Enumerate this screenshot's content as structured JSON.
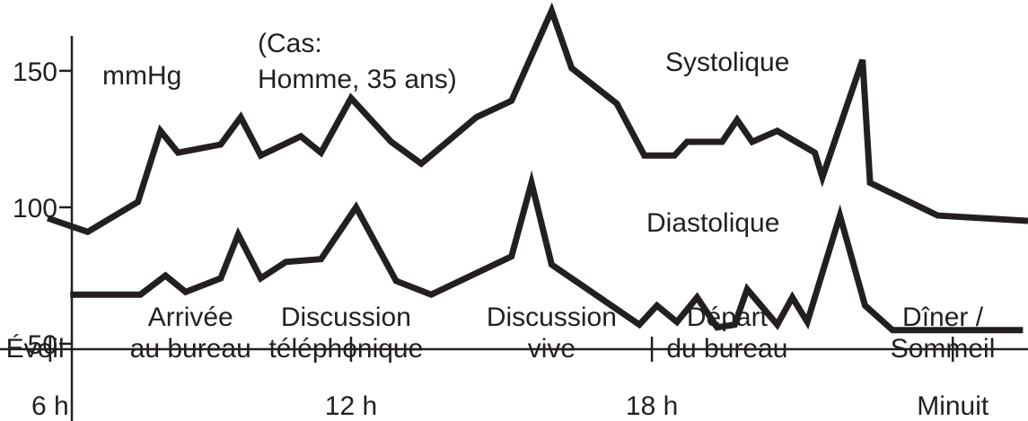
{
  "chart_data": {
    "type": "line",
    "unit_label": "mmHg",
    "case_note": [
      "(Cas:",
      "Homme, 35 ans)"
    ],
    "y_ticks": [
      {
        "value": 150,
        "label": "150"
      },
      {
        "value": 100,
        "label": "100"
      },
      {
        "value": 50,
        "label": "50"
      }
    ],
    "x_ticks": [
      {
        "value": 6,
        "label": "6 h"
      },
      {
        "value": 12,
        "label": "12 h"
      },
      {
        "value": 18,
        "label": "18 h"
      },
      {
        "value": 24,
        "label": "Minuit"
      }
    ],
    "xlim": [
      5.0,
      25.5
    ],
    "ylim": [
      25,
      172
    ],
    "series": [
      {
        "name": "Systolique",
        "points": [
          [
            5.95,
            96
          ],
          [
            6.75,
            91
          ],
          [
            7.75,
            102
          ],
          [
            8.2,
            128
          ],
          [
            8.55,
            120
          ],
          [
            9.4,
            123
          ],
          [
            9.8,
            133
          ],
          [
            10.2,
            119
          ],
          [
            11.0,
            126
          ],
          [
            11.4,
            120
          ],
          [
            12.0,
            140
          ],
          [
            12.8,
            124
          ],
          [
            13.4,
            116
          ],
          [
            14.5,
            133
          ],
          [
            15.2,
            139
          ],
          [
            16.0,
            172
          ],
          [
            16.4,
            151
          ],
          [
            17.3,
            138
          ],
          [
            17.85,
            119
          ],
          [
            18.45,
            119
          ],
          [
            18.7,
            124
          ],
          [
            19.4,
            124
          ],
          [
            19.7,
            132
          ],
          [
            20.0,
            124
          ],
          [
            20.5,
            128
          ],
          [
            21.25,
            120
          ],
          [
            21.4,
            111
          ],
          [
            22.2,
            154
          ],
          [
            22.35,
            109
          ],
          [
            23.7,
            97
          ],
          [
            25.5,
            95
          ]
        ]
      },
      {
        "name": "Diastolique",
        "points": [
          [
            6.4,
            68
          ],
          [
            7.8,
            68
          ],
          [
            8.3,
            75
          ],
          [
            8.7,
            69
          ],
          [
            9.4,
            74
          ],
          [
            9.75,
            90
          ],
          [
            10.2,
            74
          ],
          [
            10.7,
            80
          ],
          [
            11.4,
            81
          ],
          [
            12.1,
            100
          ],
          [
            12.9,
            73
          ],
          [
            13.6,
            68
          ],
          [
            15.2,
            82
          ],
          [
            15.6,
            109
          ],
          [
            16.0,
            79
          ],
          [
            17.75,
            57
          ],
          [
            18.1,
            64
          ],
          [
            18.5,
            58
          ],
          [
            18.9,
            67
          ],
          [
            19.3,
            56
          ],
          [
            19.65,
            57
          ],
          [
            19.9,
            70
          ],
          [
            20.5,
            57
          ],
          [
            20.8,
            67
          ],
          [
            21.1,
            58
          ],
          [
            21.75,
            97
          ],
          [
            22.25,
            64
          ],
          [
            22.8,
            55
          ],
          [
            25.4,
            55
          ]
        ]
      }
    ],
    "activities": [
      {
        "x": 5.7,
        "lines": [
          "",
          "Éveil"
        ]
      },
      {
        "x": 8.8,
        "lines": [
          "Arrivée",
          "au bureau"
        ]
      },
      {
        "x": 11.9,
        "lines": [
          "Discussion",
          "téléphonique"
        ]
      },
      {
        "x": 16.0,
        "lines": [
          "Discussion",
          "vive"
        ]
      },
      {
        "x": 19.5,
        "lines": [
          "Départ",
          "du bureau"
        ]
      },
      {
        "x": 23.8,
        "lines": [
          "Dîner /",
          "Sommeil"
        ]
      }
    ],
    "grid": false,
    "legend": "none"
  }
}
